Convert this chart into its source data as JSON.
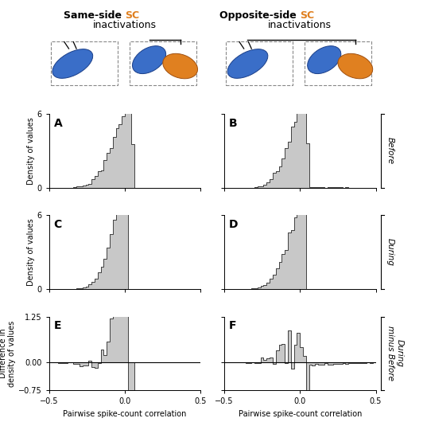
{
  "title_left_black": "Same-side ",
  "title_left_orange": "SC",
  "title_right_black": "Opposite-side ",
  "title_right_orange": "SC",
  "title_sub": "inactivations",
  "panel_labels": [
    "A",
    "B",
    "C",
    "D",
    "E",
    "F"
  ],
  "xlim": [
    -0.5,
    0.5
  ],
  "ylim_hist": [
    0,
    6
  ],
  "ylim_diff": [
    -0.75,
    1.25
  ],
  "yticks_hist": [
    0,
    6
  ],
  "yticks_diff": [
    -0.75,
    0,
    1.25
  ],
  "xlabel": "Pairwise spike-count correlation",
  "ylabel_hist": "Density of values",
  "ylabel_diff": "Difference in\ndensity of values",
  "row_labels": [
    "Before",
    "During",
    "During\nminus Before"
  ],
  "hist_facecolor": "#C8C8C8",
  "hist_edgecolor": "#404040",
  "orange_color": "#E08020",
  "blue_color": "#3A6EC8",
  "background": "#FFFFFF"
}
